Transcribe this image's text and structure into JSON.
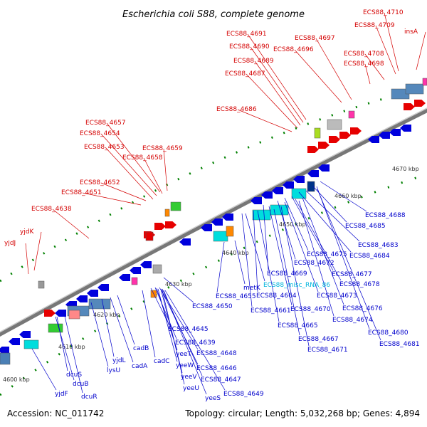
{
  "title": "Escherichia coli S88, complete genome",
  "footer": {
    "accession": "Accession: NC_011742",
    "summary": "Topology: circular; Length: 5,032,268 bp; Genes: 4,894"
  },
  "colors": {
    "top_label": "#d40000",
    "bottom_label": "#0000cc",
    "rna_label": "#00b4dc",
    "backbone": "#888888",
    "forward_gene": "#e60000",
    "reverse_gene": "#0000dd",
    "tick": "#008000"
  },
  "scale_labels": [
    "4600 kbp",
    "4610 kbp",
    "4620 kbp",
    "4630 kbp",
    "4640 kbp",
    "4650 kbp",
    "4660 kbp",
    "4670 kbp"
  ],
  "top_labels": [
    "ECS88_4710",
    "ECS88_4709",
    "insA",
    "ECS88_4691",
    "ECS88_4697",
    "ECS88_4690",
    "ECS88_4696",
    "ECS88_4689",
    "ECS88_4708",
    "ECS88_4698",
    "ECS88_4687",
    "ECS88_4686",
    "ECS88_4657",
    "ECS88_4654",
    "ECS88_4653",
    "ECS88_4659",
    "ECS88_4658",
    "ECS88_4652",
    "ECS88_4651",
    "ECS88_4638",
    "yjdK",
    "yjdJ"
  ],
  "bottom_labels": [
    "ECS88_4688",
    "ECS88_4685",
    "ECS88_4683",
    "ECS88_4675",
    "ECS88_4684",
    "ECS88_4672",
    "ECS88_4677",
    "ECS88_4669",
    "ECS88_4678",
    "metK",
    "ECS88_misc_RNA_86",
    "ECS88_4655",
    "ECS88_4664",
    "ECS88_4673",
    "ECS88_4650",
    "ECS88_4661",
    "ECS88_4670",
    "ECS88_4676",
    "ECS88_4674",
    "ECS88_4665",
    "ECS88_4680",
    "ECS88_4645",
    "ECS88_4667",
    "ECS88_4681",
    "cadB",
    "ECS88_4639",
    "ECS88_4671",
    "yeeT",
    "ECS88_4648",
    "cadA",
    "cadC",
    "yeeW",
    "ECS88_4646",
    "yjdL",
    "yeeV",
    "ECS88_4647",
    "lysU",
    "yeeU",
    "ECS88_4649",
    "yeeS",
    "dcuS",
    "dcuB",
    "dcuR",
    "yjdF"
  ]
}
